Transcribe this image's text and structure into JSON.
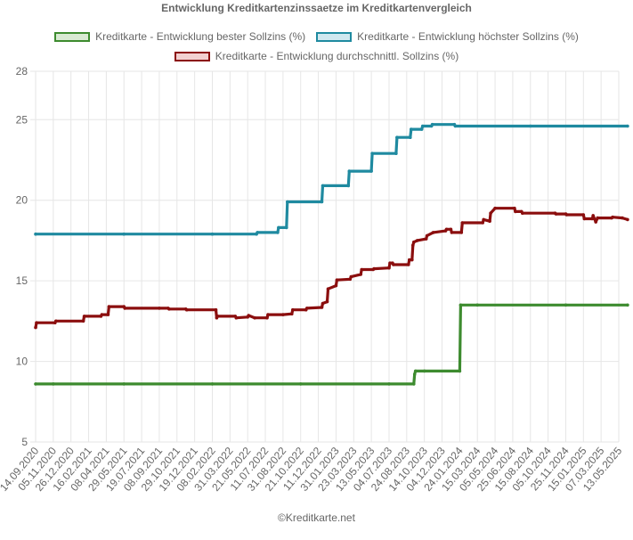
{
  "chart_data": {
    "type": "line",
    "title": "Entwicklung Kreditkartenzinssaetze im Kreditkartenvergleich",
    "ylim": [
      5,
      28
    ],
    "yticks": [
      5,
      10,
      15,
      20,
      25,
      28
    ],
    "xlabels": [
      "14.09.2020",
      "05.11.2020",
      "26.12.2020",
      "16.02.2021",
      "08.04.2021",
      "29.05.2021",
      "19.07.2021",
      "08.09.2021",
      "29.10.2021",
      "19.12.2021",
      "08.02.2022",
      "31.03.2022",
      "21.05.2022",
      "11.07.2022",
      "31.08.2022",
      "21.10.2022",
      "11.12.2022",
      "31.01.2023",
      "23.03.2023",
      "13.05.2023",
      "04.07.2023",
      "24.08.2023",
      "14.10.2023",
      "04.12.2023",
      "24.01.2024",
      "15.03.2024",
      "05.05.2024",
      "25.06.2024",
      "15.08.2024",
      "05.10.2024",
      "25.11.2024",
      "15.01.2025",
      "07.03.2025",
      "13.05.2025"
    ],
    "grid": true,
    "legend_position": "top",
    "series": [
      {
        "name": "Kreditkarte - Entwicklung bester Sollzins  (%)",
        "color": "#3d8b2f",
        "fill": "#d9ead3",
        "points": [
          [
            0,
            8.6
          ],
          [
            1,
            8.6
          ],
          [
            5,
            8.6
          ],
          [
            10,
            8.6
          ],
          [
            15,
            8.6
          ],
          [
            20,
            8.6
          ],
          [
            21.4,
            8.6
          ],
          [
            21.45,
            9.2
          ],
          [
            21.5,
            9.4
          ],
          [
            22,
            9.4
          ],
          [
            24.0,
            9.4
          ],
          [
            24.05,
            13.5
          ],
          [
            25,
            13.5
          ],
          [
            30,
            13.5
          ],
          [
            33.5,
            13.5
          ]
        ]
      },
      {
        "name": "Kreditkarte - Entwicklung höchster Sollzins (%)",
        "color": "#1f8aa0",
        "fill": "#d0e8ef",
        "points": [
          [
            0,
            17.9
          ],
          [
            5,
            17.9
          ],
          [
            10,
            17.9
          ],
          [
            12.5,
            17.9
          ],
          [
            12.55,
            18.0
          ],
          [
            13.7,
            18.0
          ],
          [
            13.75,
            18.3
          ],
          [
            14.2,
            18.3
          ],
          [
            14.25,
            19.9
          ],
          [
            16.2,
            19.9
          ],
          [
            16.25,
            20.9
          ],
          [
            17.7,
            20.9
          ],
          [
            17.75,
            21.8
          ],
          [
            19.0,
            21.8
          ],
          [
            19.05,
            22.9
          ],
          [
            20.4,
            22.9
          ],
          [
            20.45,
            23.9
          ],
          [
            21.2,
            23.9
          ],
          [
            21.25,
            24.4
          ],
          [
            21.85,
            24.4
          ],
          [
            21.9,
            24.6
          ],
          [
            22.4,
            24.6
          ],
          [
            22.45,
            24.7
          ],
          [
            23.7,
            24.7
          ],
          [
            23.75,
            24.6
          ],
          [
            28,
            24.6
          ],
          [
            33.5,
            24.6
          ]
        ]
      },
      {
        "name": "Kreditkarte - Entwicklung durchschnittl. Sollzins (%)",
        "color": "#8b0e0e",
        "fill": "#f2d0d0",
        "points": [
          [
            0,
            12.1
          ],
          [
            0.05,
            12.4
          ],
          [
            1.1,
            12.4
          ],
          [
            1.15,
            12.5
          ],
          [
            2.7,
            12.5
          ],
          [
            2.75,
            12.8
          ],
          [
            3.7,
            12.8
          ],
          [
            3.75,
            12.9
          ],
          [
            4.1,
            12.9
          ],
          [
            4.15,
            13.4
          ],
          [
            5.0,
            13.4
          ],
          [
            5.05,
            13.3
          ],
          [
            7,
            13.3
          ],
          [
            7.5,
            13.3
          ],
          [
            7.55,
            13.25
          ],
          [
            8.5,
            13.25
          ],
          [
            8.55,
            13.2
          ],
          [
            10.2,
            13.2
          ],
          [
            10.25,
            12.7
          ],
          [
            10.3,
            12.8
          ],
          [
            11.3,
            12.8
          ],
          [
            11.35,
            12.7
          ],
          [
            12.0,
            12.75
          ],
          [
            12.05,
            12.85
          ],
          [
            12.4,
            12.7
          ],
          [
            13.1,
            12.7
          ],
          [
            13.15,
            12.9
          ],
          [
            14.0,
            12.9
          ],
          [
            14.5,
            12.95
          ],
          [
            14.55,
            13.2
          ],
          [
            15.3,
            13.2
          ],
          [
            15.35,
            13.3
          ],
          [
            16.2,
            13.35
          ],
          [
            16.25,
            13.6
          ],
          [
            16.5,
            13.7
          ],
          [
            16.55,
            14.5
          ],
          [
            17.0,
            14.7
          ],
          [
            17.05,
            15.05
          ],
          [
            17.8,
            15.1
          ],
          [
            17.85,
            15.25
          ],
          [
            18.4,
            15.4
          ],
          [
            18.45,
            15.7
          ],
          [
            19.1,
            15.7
          ],
          [
            19.15,
            15.75
          ],
          [
            20.0,
            15.8
          ],
          [
            20.05,
            16.1
          ],
          [
            20.2,
            16.1
          ],
          [
            20.25,
            16.0
          ],
          [
            21.1,
            16.0
          ],
          [
            21.15,
            16.3
          ],
          [
            21.3,
            16.3
          ],
          [
            21.35,
            17.2
          ],
          [
            21.4,
            17.4
          ],
          [
            21.6,
            17.5
          ],
          [
            22.1,
            17.6
          ],
          [
            22.15,
            17.8
          ],
          [
            22.5,
            18.0
          ],
          [
            23.2,
            18.1
          ],
          [
            23.25,
            18.2
          ],
          [
            23.5,
            18.2
          ],
          [
            23.55,
            18.0
          ],
          [
            24.1,
            18.0
          ],
          [
            24.15,
            18.6
          ],
          [
            25.3,
            18.6
          ],
          [
            25.35,
            18.8
          ],
          [
            25.7,
            18.7
          ],
          [
            25.75,
            19.2
          ],
          [
            26.0,
            19.5
          ],
          [
            27.1,
            19.5
          ],
          [
            27.15,
            19.3
          ],
          [
            27.5,
            19.3
          ],
          [
            27.55,
            19.2
          ],
          [
            29.4,
            19.2
          ],
          [
            29.45,
            19.15
          ],
          [
            30.0,
            19.15
          ],
          [
            30.05,
            19.1
          ],
          [
            31.0,
            19.1
          ],
          [
            31.05,
            18.85
          ],
          [
            31.5,
            18.85
          ],
          [
            31.55,
            19.05
          ],
          [
            31.7,
            18.65
          ],
          [
            31.8,
            18.9
          ],
          [
            32.6,
            18.9
          ],
          [
            32.65,
            18.95
          ],
          [
            33.2,
            18.9
          ],
          [
            33.5,
            18.8
          ]
        ]
      }
    ]
  },
  "footer": "©Kreditkarte.net"
}
